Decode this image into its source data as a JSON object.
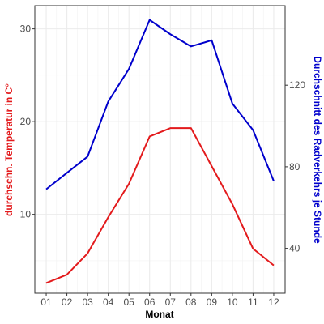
{
  "chart_data": {
    "type": "line",
    "x": [
      "01",
      "02",
      "03",
      "04",
      "05",
      "06",
      "07",
      "08",
      "09",
      "10",
      "11",
      "12"
    ],
    "xlabel": "Monat",
    "y_left": {
      "label": "durchschn. Temperatur in C°",
      "color": "#e31a1c",
      "range": [
        1.5,
        32.5
      ],
      "ticks": [
        10,
        20,
        30
      ]
    },
    "y_right": {
      "label": "Durchschnitt des Radverkehrs je Stunde",
      "color": "#0000cc",
      "range": [
        18,
        159
      ],
      "ticks": [
        40,
        80,
        120
      ]
    },
    "series": [
      {
        "axis": "left",
        "color": "#e31a1c",
        "values": [
          2.6,
          3.5,
          5.8,
          9.7,
          13.3,
          18.4,
          19.3,
          19.3,
          15.2,
          11.1,
          6.3,
          4.5
        ]
      },
      {
        "axis": "right",
        "color": "#0000cc",
        "values": [
          69,
          77,
          85,
          112,
          128,
          152,
          145,
          139,
          142,
          111,
          98,
          73
        ]
      }
    ],
    "grid": true,
    "legend": "none"
  }
}
